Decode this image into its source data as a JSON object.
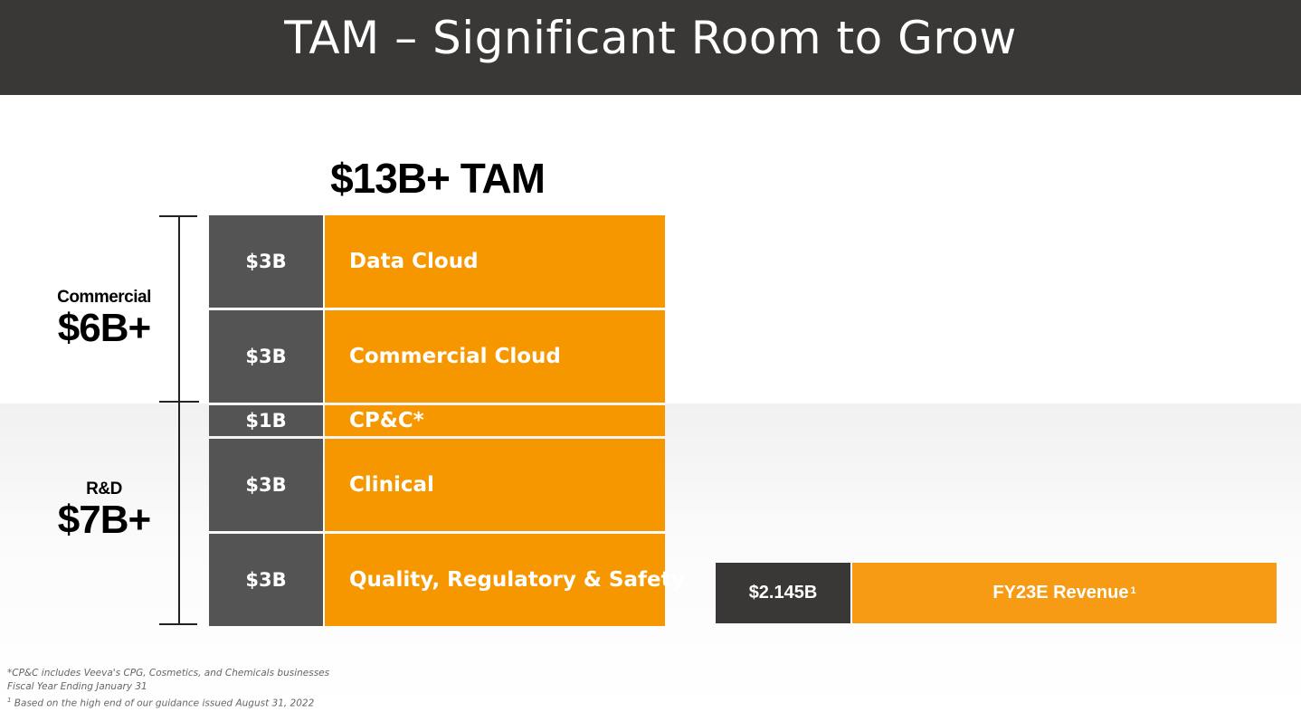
{
  "header": {
    "title": "TAM – Significant Room to Grow"
  },
  "colors": {
    "header_bg": "#3a3836",
    "value_cell": "#545454",
    "segment_cell": "#f79700",
    "revenue_label_cell": "#f79b14"
  },
  "chart_data": {
    "type": "bar",
    "title": "$13B+ TAM",
    "groups": [
      {
        "name": "Commercial",
        "total": "$6B+"
      },
      {
        "name": "R&D",
        "total": "$7B+"
      }
    ],
    "segments": [
      {
        "name": "Data Cloud",
        "label": "$3B",
        "value": 3,
        "group": "Commercial"
      },
      {
        "name": "Commercial Cloud",
        "label": "$3B",
        "value": 3,
        "group": "Commercial"
      },
      {
        "name": "CP&C*",
        "label": "$1B",
        "value": 1,
        "group": "R&D"
      },
      {
        "name": "Clinical",
        "label": "$3B",
        "value": 3,
        "group": "R&D"
      },
      {
        "name": "Quality, Regulatory & Safety",
        "label": "$3B",
        "value": 3,
        "group": "R&D"
      }
    ],
    "comparison": {
      "label": "FY23E Revenue",
      "footnote_marker": "1",
      "value_label": "$2.145B",
      "value": 2.145
    }
  },
  "footnotes": {
    "line1": "*CP&C includes Veeva's CPG, Cosmetics, and Chemicals businesses",
    "line2": "Fiscal Year Ending January 31",
    "line3_marker": "1",
    "line3": " Based on the high end of our guidance issued August 31, 2022"
  }
}
